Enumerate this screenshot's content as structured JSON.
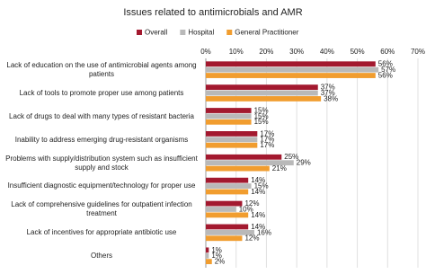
{
  "chart_data": {
    "type": "bar",
    "orientation": "horizontal",
    "title": "Issues related to antimicrobials and AMR",
    "categories": [
      "Lack of education on the use of antimicrobial agents among patients",
      "Lack of tools to promote proper use among patients",
      "Lack of drugs to deal with many types of resistant bacteria",
      "Inability to address emerging drug-resistant organisms",
      "Problems with supply/distribution system such as insufficient supply and stock",
      "Insufficient diagnostic equipment/technology for proper use",
      "Lack of comprehensive guidelines for outpatient infection treatment",
      "Lack of incentives for appropriate antibiotic use",
      "Others"
    ],
    "series": [
      {
        "name": "Overall",
        "color": "#a3192f",
        "values": [
          56,
          37,
          15,
          17,
          25,
          14,
          12,
          14,
          1
        ],
        "value_labels": [
          "56%",
          "37%",
          "15%",
          "17%",
          "25%",
          "14%",
          "12%",
          "14%",
          "1%"
        ]
      },
      {
        "name": "Hospital",
        "color": "#b9b9b9",
        "values": [
          57,
          37,
          15,
          17,
          29,
          15,
          10,
          16,
          1
        ],
        "value_labels": [
          "57%",
          "37%",
          "15%",
          "17%",
          "29%",
          "15%",
          "10%",
          "16%",
          "1%"
        ]
      },
      {
        "name": "General Practitioner",
        "color": "#f19d2f",
        "values": [
          56,
          38,
          15,
          17,
          21,
          14,
          14,
          12,
          2
        ],
        "value_labels": [
          "56%",
          "38%",
          "15%",
          "17%",
          "21%",
          "14%",
          "14%",
          "12%",
          "2%"
        ]
      }
    ],
    "xlim": [
      0,
      70
    ],
    "xticks": [
      {
        "value": 0,
        "label": "0%"
      },
      {
        "value": 10,
        "label": "10%"
      },
      {
        "value": 20,
        "label": "20%"
      },
      {
        "value": 30,
        "label": "30%"
      },
      {
        "value": 40,
        "label": "40%"
      },
      {
        "value": 50,
        "label": "50%"
      },
      {
        "value": 60,
        "label": "60%"
      },
      {
        "value": 70,
        "label": "70%"
      }
    ],
    "grid": true,
    "legend": "top"
  }
}
